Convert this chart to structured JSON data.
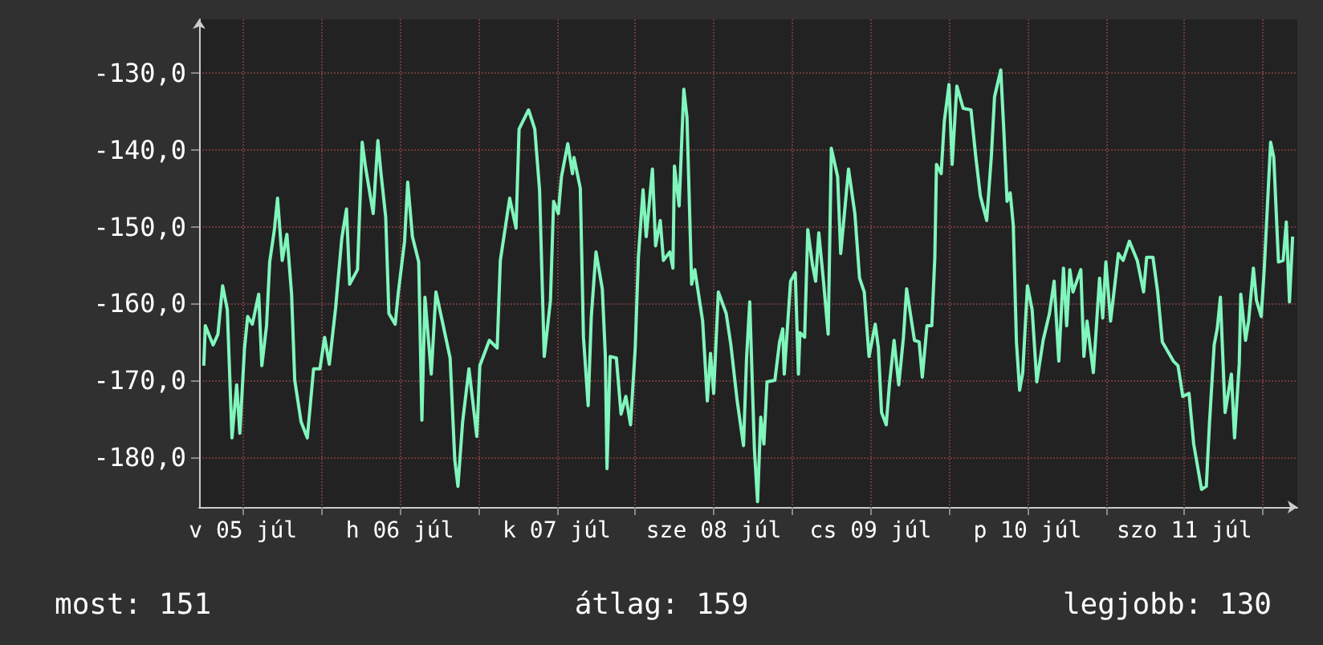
{
  "chart_data": {
    "type": "line",
    "x": [
      "--07-05T06:00",
      "--07-05T06:14",
      "--07-05T07:26",
      "--07-05T08:10",
      "--07-05T08:38",
      "--07-05T08:53",
      "--07-05T09:36",
      "--07-05T10:19",
      "--07-05T11:02",
      "--07-05T11:31",
      "--07-05T12:14",
      "--07-05T12:43",
      "--07-05T13:26",
      "--07-05T14:24",
      "--07-05T14:53",
      "--07-05T15:36",
      "--07-05T16:05",
      "--07-05T16:48",
      "--07-05T17:17",
      "--07-05T18:00",
      "--07-05T18:43",
      "--07-05T19:26",
      "--07-05T19:55",
      "--07-05T20:53",
      "--07-05T21:50",
      "--07-05T22:48",
      "--07-05T23:46",
      "--07-06T00:29",
      "--07-06T01:12",
      "--07-06T02:10",
      "--07-06T03:07",
      "--07-06T03:50",
      "--07-06T04:19",
      "--07-06T05:31",
      "--07-06T06:14",
      "--07-06T06:43",
      "--07-06T07:55",
      "--07-06T08:38",
      "--07-06T09:07",
      "--07-06T09:50",
      "--07-06T10:19",
      "--07-06T11:17",
      "--07-06T11:46",
      "--07-06T12:43",
      "--07-06T13:12",
      "--07-06T13:55",
      "--07-06T14:53",
      "--07-06T15:22",
      "--07-06T15:50",
      "--07-06T16:48",
      "--07-06T17:31",
      "--07-06T18:29",
      "--07-06T19:41",
      "--07-06T20:24",
      "--07-06T20:53",
      "--07-06T21:36",
      "--07-06T22:34",
      "--07-06T23:46",
      "--07-07T00:14",
      "--07-07T01:41",
      "--07-07T02:53",
      "--07-07T03:22",
      "--07-07T04:48",
      "--07-07T05:46",
      "--07-07T06:14",
      "--07-07T07:41",
      "--07-07T08:38",
      "--07-07T09:22",
      "--07-07T10:05",
      "--07-07T11:02",
      "--07-07T11:31",
      "--07-07T12:14",
      "--07-07T12:43",
      "--07-07T13:41",
      "--07-07T14:24",
      "--07-07T14:38",
      "--07-07T15:36",
      "--07-07T16:05",
      "--07-07T16:48",
      "--07-07T17:17",
      "--07-07T18:00",
      "--07-07T18:58",
      "--07-07T19:26",
      "--07-07T19:41",
      "--07-07T20:10",
      "--07-07T21:07",
      "--07-07T21:50",
      "--07-07T22:34",
      "--07-07T23:17",
      "--07-08T00:00",
      "--07-08T00:29",
      "--07-08T01:12",
      "--07-08T01:41",
      "--07-08T02:38",
      "--07-08T03:07",
      "--07-08T03:50",
      "--07-08T04:19",
      "--07-08T05:17",
      "--07-08T05:46",
      "--07-08T06:00",
      "--07-08T06:43",
      "--07-08T07:26",
      "--07-08T07:55",
      "--07-08T08:38",
      "--07-08T09:07",
      "--07-08T10:19",
      "--07-08T11:02",
      "--07-08T11:31",
      "--07-08T12:00",
      "--07-08T12:43",
      "--07-08T13:55",
      "--07-08T14:38",
      "--07-08T15:36",
      "--07-08T16:34",
      "--07-08T17:02",
      "--07-08T17:31",
      "--07-08T18:14",
      "--07-08T18:43",
      "--07-08T19:12",
      "--07-08T19:41",
      "--07-08T20:10",
      "--07-08T21:22",
      "--07-08T22:05",
      "--07-08T22:34",
      "--07-08T22:48",
      "--07-08T23:46",
      "--07-09T00:29",
      "--07-09T00:58",
      "--07-09T01:12",
      "--07-09T01:55",
      "--07-09T02:24",
      "--07-09T03:07",
      "--07-09T03:36",
      "--07-09T04:05",
      "--07-09T04:48",
      "--07-09T05:31",
      "--07-09T06:00",
      "--07-09T06:58",
      "--07-09T07:26",
      "--07-09T08:38",
      "--07-09T09:36",
      "--07-09T10:19",
      "--07-09T11:02",
      "--07-09T11:46",
      "--07-09T12:43",
      "--07-09T13:12",
      "--07-09T13:41",
      "--07-09T14:24",
      "--07-09T14:53",
      "--07-09T15:36",
      "--07-09T16:19",
      "--07-09T17:02",
      "--07-09T17:31",
      "--07-09T18:43",
      "--07-09T19:26",
      "--07-09T19:55",
      "--07-09T20:38",
      "--07-09T21:22",
      "--07-09T21:50",
      "--07-09T22:05",
      "--07-09T22:48",
      "--07-09T23:17",
      "--07-10T00:00",
      "--07-10T00:29",
      "--07-10T01:12",
      "--07-10T02:10",
      "--07-10T03:22",
      "--07-10T04:05",
      "--07-10T04:48",
      "--07-10T05:46",
      "--07-10T06:29",
      "--07-10T06:58",
      "--07-10T07:55",
      "--07-10T08:24",
      "--07-10T08:53",
      "--07-10T09:22",
      "--07-10T09:50",
      "--07-10T10:19",
      "--07-10T10:48",
      "--07-10T11:17",
      "--07-10T12:00",
      "--07-10T12:43",
      "--07-10T13:26",
      "--07-10T14:24",
      "--07-10T15:22",
      "--07-10T16:05",
      "--07-10T16:48",
      "--07-10T17:31",
      "--07-10T18:00",
      "--07-10T18:29",
      "--07-10T18:58",
      "--07-10T20:10",
      "--07-10T20:38",
      "--07-10T21:07",
      "--07-10T22:05",
      "--07-10T23:02",
      "--07-10T23:31",
      "--07-11T00:00",
      "--07-11T00:43",
      "--07-11T01:12",
      "--07-11T01:55",
      "--07-11T02:38",
      "--07-11T03:36",
      "--07-11T04:48",
      "--07-11T05:46",
      "--07-11T06:14",
      "--07-11T07:12",
      "--07-11T07:55",
      "--07-11T08:38",
      "--07-11T10:19",
      "--07-11T11:02",
      "--07-11T11:46",
      "--07-11T12:43",
      "--07-11T13:26",
      "--07-11T14:38",
      "--07-11T15:22",
      "--07-11T15:50",
      "--07-11T16:34",
      "--07-11T17:02",
      "--07-11T17:31",
      "--07-11T18:14",
      "--07-11T19:12",
      "--07-11T19:41",
      "--07-11T20:24",
      "--07-11T20:38",
      "--07-11T21:22",
      "--07-11T21:50",
      "--07-11T22:34",
      "--07-11T23:02",
      "--07-11T23:46",
      "--07-12T00:14",
      "--07-12T01:12",
      "--07-12T01:41",
      "--07-12T02:24",
      "--07-12T03:07",
      "--07-12T03:36",
      "--07-12T04:05",
      "--07-12T04:34"
    ],
    "series": [
      {
        "color": "#80f5bc",
        "values": [
          -168.1,
          -162.9,
          -165.4,
          -164,
          -159.8,
          -157.7,
          -160.8,
          -177.5,
          -170.6,
          -176.9,
          -165.8,
          -161.7,
          -162.7,
          -158.8,
          -168.1,
          -162.9,
          -154.6,
          -150.4,
          -146.3,
          -154.4,
          -151,
          -158.8,
          -170,
          -175.4,
          -177.5,
          -168.5,
          -168.5,
          -164.4,
          -167.9,
          -160.6,
          -151.5,
          -147.7,
          -157.5,
          -155.6,
          -139,
          -142.1,
          -148.3,
          -138.8,
          -143.1,
          -148.8,
          -161.3,
          -162.7,
          -158.5,
          -151.9,
          -144.2,
          -151.3,
          -154.6,
          -175.2,
          -159.2,
          -169.2,
          -158.5,
          -162.3,
          -167.1,
          -180.4,
          -183.8,
          -175.4,
          -168.5,
          -177.3,
          -168.1,
          -164.8,
          -165.8,
          -154.4,
          -146.3,
          -150.2,
          -137.3,
          -134.8,
          -137.3,
          -145.2,
          -166.9,
          -159.6,
          -146.7,
          -148.3,
          -143.5,
          -139.2,
          -143.1,
          -141,
          -145,
          -164.4,
          -173.3,
          -161.7,
          -153.3,
          -158.1,
          -166.9,
          -181.5,
          -166.9,
          -167.1,
          -174.4,
          -172.1,
          -175.8,
          -165.8,
          -154,
          -145.2,
          -151.3,
          -142.5,
          -152.5,
          -149.2,
          -154.4,
          -153.3,
          -155.4,
          -142.1,
          -147.3,
          -132.1,
          -135.8,
          -157.5,
          -155.6,
          -162.3,
          -172.7,
          -166.5,
          -171.7,
          -158.5,
          -161.3,
          -165.4,
          -172.7,
          -178.5,
          -167.1,
          -159.8,
          -179,
          -185.8,
          -174.8,
          -178.3,
          -170.2,
          -170,
          -165,
          -163.3,
          -169.2,
          -157.1,
          -156,
          -169.2,
          -163.8,
          -164.4,
          -150.4,
          -155,
          -157.1,
          -150.8,
          -157.1,
          -164,
          -139.8,
          -143.5,
          -153.5,
          -142.5,
          -148.3,
          -156.7,
          -158.5,
          -166.9,
          -162.7,
          -165.8,
          -174.2,
          -175.8,
          -170.6,
          -164.8,
          -170.6,
          -164.4,
          -158.1,
          -164.8,
          -165,
          -169.6,
          -162.9,
          -162.9,
          -154,
          -141.9,
          -143.1,
          -136.3,
          -131.5,
          -141.9,
          -131.7,
          -134.6,
          -134.8,
          -140.8,
          -146,
          -149.2,
          -140.8,
          -133.1,
          -129.6,
          -137.7,
          -146.7,
          -145.6,
          -149.8,
          -165,
          -171.3,
          -169,
          -157.7,
          -160.8,
          -170.2,
          -164.8,
          -161.3,
          -157.1,
          -167.5,
          -155.4,
          -162.9,
          -155.6,
          -158.5,
          -155.6,
          -166.9,
          -162.3,
          -169,
          -156.7,
          -161.9,
          -154.6,
          -162.3,
          -158.8,
          -153.5,
          -154.4,
          -151.9,
          -154.4,
          -158.5,
          -154,
          -154,
          -158.5,
          -165,
          -167.5,
          -168.1,
          -172.1,
          -171.7,
          -178.3,
          -184.2,
          -183.8,
          -175.8,
          -165.4,
          -163.3,
          -159.2,
          -174.2,
          -169.2,
          -177.5,
          -167.9,
          -158.8,
          -164.8,
          -162.3,
          -155.4,
          -159.6,
          -161.7,
          -155.4,
          -139,
          -141,
          -154.6,
          -154.4,
          -149.4,
          -159.8,
          -151.3
        ]
      }
    ],
    "xlim": [
      "--07-05T05:17",
      "--07-12T05:17"
    ],
    "xticks": [
      {
        "value": "--07-05T12:00",
        "label": "v 05 júl"
      },
      {
        "value": "--07-06T00:00",
        "label": null
      },
      {
        "value": "--07-06T12:00",
        "label": "h 06 júl"
      },
      {
        "value": "--07-07T00:00",
        "label": null
      },
      {
        "value": "--07-07T12:00",
        "label": "k 07 júl"
      },
      {
        "value": "--07-08T00:00",
        "label": null
      },
      {
        "value": "--07-08T12:00",
        "label": "sze 08 júl"
      },
      {
        "value": "--07-09T00:00",
        "label": null
      },
      {
        "value": "--07-09T12:00",
        "label": "cs 09 júl"
      },
      {
        "value": "--07-10T00:00",
        "label": null
      },
      {
        "value": "--07-10T12:00",
        "label": "p 10 júl"
      },
      {
        "value": "--07-11T00:00",
        "label": null
      },
      {
        "value": "--07-11T12:00",
        "label": "szo 11 júl"
      },
      {
        "value": "--07-12T00:00",
        "label": null
      }
    ],
    "ylim": [
      -186.5,
      -123
    ],
    "yticks": [
      {
        "value": -180,
        "label": "-180,0"
      },
      {
        "value": -170,
        "label": "-170,0"
      },
      {
        "value": -160,
        "label": "-160,0"
      },
      {
        "value": -150,
        "label": "-150,0"
      },
      {
        "value": -140,
        "label": "-140,0"
      },
      {
        "value": -130,
        "label": "-130,0"
      }
    ],
    "annotations": [
      "most: 151",
      "átlag: 159",
      "legjobb: 130"
    ],
    "grid": true,
    "marker": "none",
    "line_style": "solid"
  }
}
